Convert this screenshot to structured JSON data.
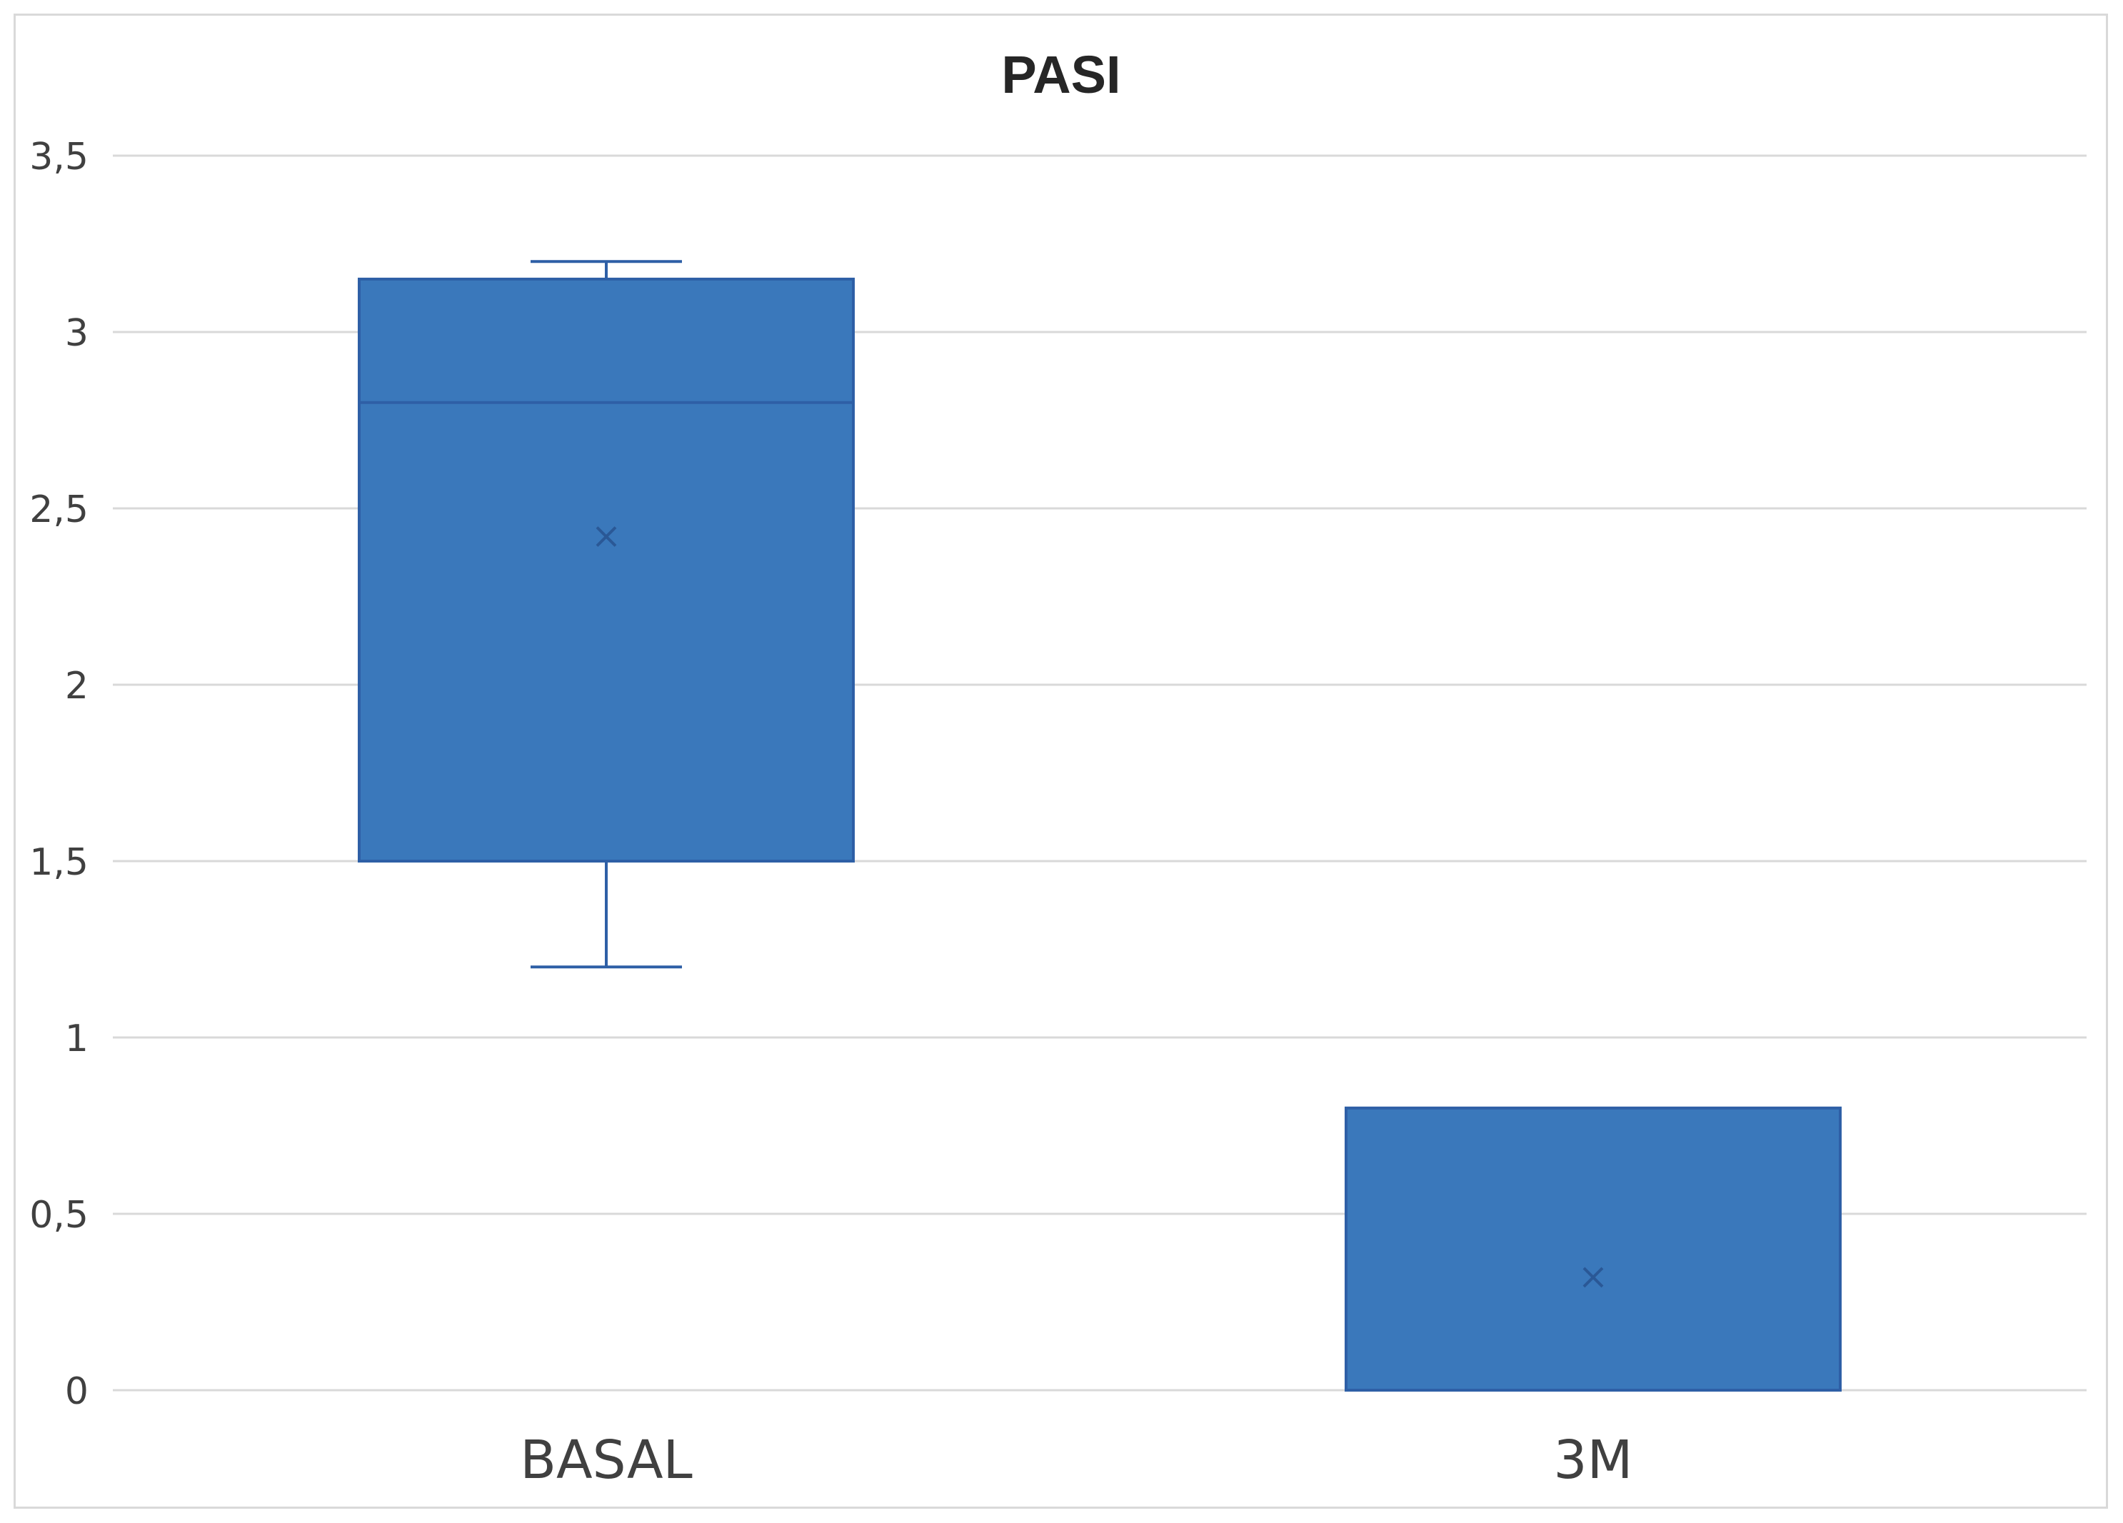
{
  "chart_data": {
    "type": "box",
    "title": "PASI",
    "xlabel": "",
    "ylabel": "",
    "categories": [
      "BASAL",
      "3M"
    ],
    "ylim": [
      0,
      3.5
    ],
    "yticks": [
      0,
      0.5,
      1,
      1.5,
      2,
      2.5,
      3,
      3.5
    ],
    "ytick_labels": [
      "0",
      "0,5",
      "1",
      "1,5",
      "2",
      "2,5",
      "3",
      "3,5"
    ],
    "boxes": [
      {
        "category": "BASAL",
        "whisker_low": 1.2,
        "q1": 1.5,
        "median": 2.8,
        "q3": 3.15,
        "whisker_high": 3.2,
        "mean": 2.42
      },
      {
        "category": "3M",
        "whisker_low": 0,
        "q1": 0,
        "median": 0,
        "q3": 0.8,
        "whisker_high": 0.8,
        "mean": 0.32
      }
    ],
    "grid": true,
    "legend": "none",
    "colors": {
      "box_fill": "#3a78bb",
      "box_stroke": "#2e5fa6",
      "grid": "#d9d9d9",
      "text": "#404040"
    }
  }
}
